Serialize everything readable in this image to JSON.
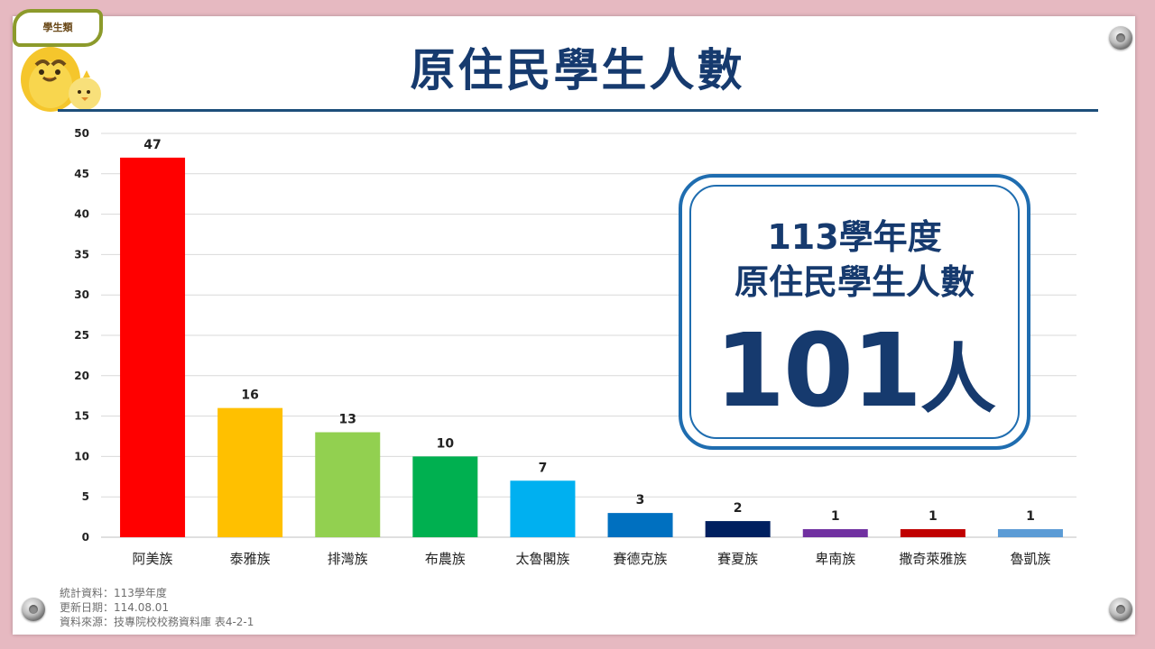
{
  "badge": "學生類",
  "title": "原住民學生人數",
  "summary": {
    "line1": "113學年度",
    "line2": "原住民學生人數",
    "total": "101",
    "unit": "人"
  },
  "footer": {
    "line1": "統計資料：113學年度",
    "line2": "更新日期：114.08.01",
    "line3": "資料來源：技專院校校務資料庫  表4-2-1"
  },
  "chart_data": {
    "type": "bar",
    "categories": [
      "阿美族",
      "泰雅族",
      "排灣族",
      "布農族",
      "太魯閣族",
      "賽德克族",
      "賽夏族",
      "卑南族",
      "撒奇萊雅族",
      "魯凱族"
    ],
    "values": [
      47,
      16,
      13,
      10,
      7,
      3,
      2,
      1,
      1,
      1
    ],
    "colors": [
      "#ff0000",
      "#ffc000",
      "#92d050",
      "#00b050",
      "#00b0f0",
      "#0070c0",
      "#002060",
      "#7030a0",
      "#c00000",
      "#5b9bd5"
    ],
    "ylim": [
      0,
      50
    ],
    "yticks": [
      0,
      5,
      10,
      15,
      20,
      25,
      30,
      35,
      40,
      45,
      50
    ],
    "grid": true,
    "title": "",
    "xlabel": "",
    "ylabel": ""
  }
}
